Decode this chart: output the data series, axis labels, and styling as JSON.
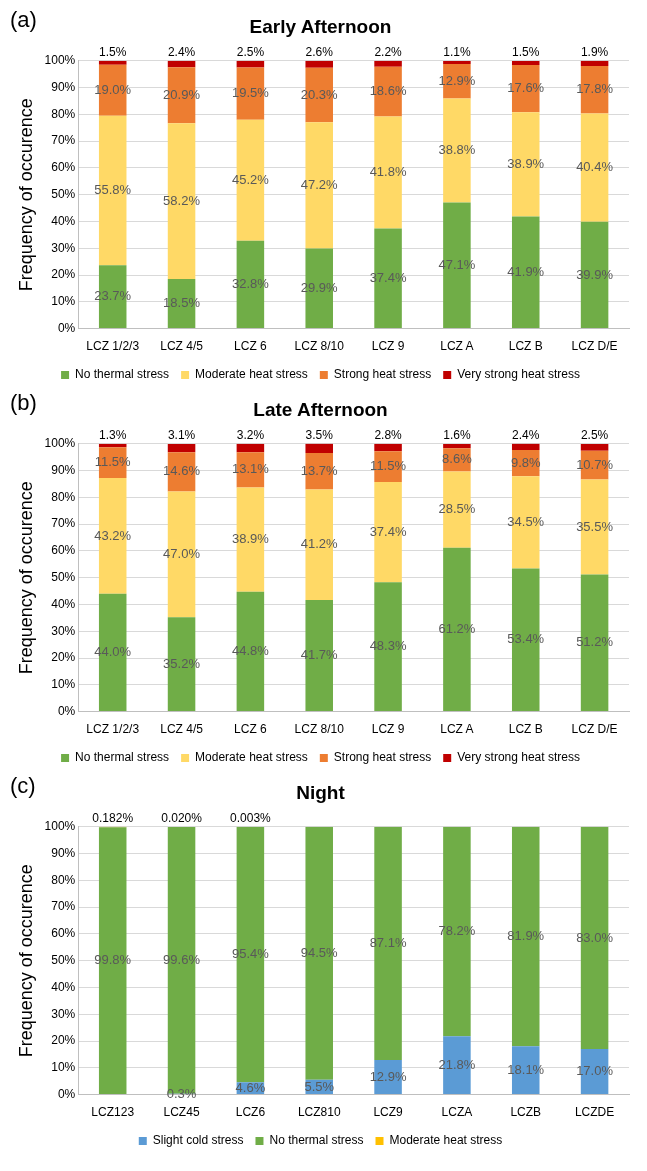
{
  "chart_data": [
    {
      "type": "bar",
      "stacked": true,
      "title": "Early Afternoon",
      "ylabel": "Frequency of occurence",
      "annotations": [
        "(a)"
      ],
      "categories": [
        "LCZ 1/2/3",
        "LCZ 4/5",
        "LCZ 6",
        "LCZ 8/10",
        "LCZ 9",
        "LCZ A",
        "LCZ B",
        "LCZ D/E"
      ],
      "ylim": [
        0,
        100
      ],
      "yticks": [
        {
          "value": 0,
          "label": "0%"
        },
        {
          "value": 10,
          "label": "10%"
        },
        {
          "value": 20,
          "label": "20%"
        },
        {
          "value": 30,
          "label": "30%"
        },
        {
          "value": 40,
          "label": "40%"
        },
        {
          "value": 50,
          "label": "50%"
        },
        {
          "value": 60,
          "label": "60%"
        },
        {
          "value": 70,
          "label": "70%"
        },
        {
          "value": 80,
          "label": "80%"
        },
        {
          "value": 90,
          "label": "90%"
        },
        {
          "value": 100,
          "label": "100%"
        }
      ],
      "grid": "y",
      "legend": "bottom",
      "series": [
        {
          "name": "No thermal stress",
          "color": "#70ad47",
          "values": [
            23.7,
            18.5,
            32.8,
            29.9,
            37.4,
            47.1,
            41.9,
            39.9
          ],
          "value_labels": [
            "23.7%",
            "18.5%",
            "32.8%",
            "29.9%",
            "37.4%",
            "47.1%",
            "41.9%",
            "39.9%"
          ]
        },
        {
          "name": "Moderate heat stress",
          "color": "#ffd966",
          "values": [
            55.8,
            58.2,
            45.2,
            47.2,
            41.8,
            38.8,
            38.9,
            40.4
          ],
          "value_labels": [
            "55.8%",
            "58.2%",
            "45.2%",
            "47.2%",
            "41.8%",
            "38.8%",
            "38.9%",
            "40.4%"
          ]
        },
        {
          "name": "Strong heat stress",
          "color": "#ed7d31",
          "values": [
            19.0,
            20.9,
            19.5,
            20.3,
            18.6,
            12.9,
            17.6,
            17.8
          ],
          "value_labels": [
            "19.0%",
            "20.9%",
            "19.5%",
            "20.3%",
            "18.6%",
            "12.9%",
            "17.6%",
            "17.8%"
          ]
        },
        {
          "name": "Very strong heat stress",
          "color": "#c00000",
          "values": [
            1.5,
            2.4,
            2.5,
            2.6,
            2.2,
            1.1,
            1.5,
            1.9
          ],
          "value_labels": [
            "1.5%",
            "2.4%",
            "2.5%",
            "2.6%",
            "2.2%",
            "1.1%",
            "1.5%",
            "1.9%"
          ]
        }
      ]
    },
    {
      "type": "bar",
      "stacked": true,
      "title": "Late Afternoon",
      "ylabel": "Frequency of occurence",
      "annotations": [
        "(b)"
      ],
      "categories": [
        "LCZ 1/2/3",
        "LCZ 4/5",
        "LCZ 6",
        "LCZ 8/10",
        "LCZ 9",
        "LCZ A",
        "LCZ B",
        "LCZ D/E"
      ],
      "ylim": [
        0,
        100
      ],
      "yticks": [
        {
          "value": 0,
          "label": "0%"
        },
        {
          "value": 10,
          "label": "10%"
        },
        {
          "value": 20,
          "label": "20%"
        },
        {
          "value": 30,
          "label": "30%"
        },
        {
          "value": 40,
          "label": "40%"
        },
        {
          "value": 50,
          "label": "50%"
        },
        {
          "value": 60,
          "label": "60%"
        },
        {
          "value": 70,
          "label": "70%"
        },
        {
          "value": 80,
          "label": "80%"
        },
        {
          "value": 90,
          "label": "90%"
        },
        {
          "value": 100,
          "label": "100%"
        }
      ],
      "grid": "y",
      "legend": "bottom",
      "series": [
        {
          "name": "No thermal stress",
          "color": "#70ad47",
          "values": [
            44.0,
            35.2,
            44.8,
            41.7,
            48.3,
            61.2,
            53.4,
            51.2
          ],
          "value_labels": [
            "44.0%",
            "35.2%",
            "44.8%",
            "41.7%",
            "48.3%",
            "61.2%",
            "53.4%",
            "51.2%"
          ]
        },
        {
          "name": "Moderate heat stress",
          "color": "#ffd966",
          "values": [
            43.2,
            47.0,
            38.9,
            41.2,
            37.4,
            28.5,
            34.5,
            35.5
          ],
          "value_labels": [
            "43.2%",
            "47.0%",
            "38.9%",
            "41.2%",
            "37.4%",
            "28.5%",
            "34.5%",
            "35.5%"
          ]
        },
        {
          "name": "Strong heat stress",
          "color": "#ed7d31",
          "values": [
            11.5,
            14.6,
            13.1,
            13.7,
            11.5,
            8.6,
            9.8,
            10.7
          ],
          "value_labels": [
            "11.5%",
            "14.6%",
            "13.1%",
            "13.7%",
            "11.5%",
            "8.6%",
            "9.8%",
            "10.7%"
          ]
        },
        {
          "name": "Very strong heat stress",
          "color": "#c00000",
          "values": [
            1.3,
            3.1,
            3.2,
            3.5,
            2.8,
            1.6,
            2.4,
            2.5
          ],
          "value_labels": [
            "1.3%",
            "3.1%",
            "3.2%",
            "3.5%",
            "2.8%",
            "1.6%",
            "2.4%",
            "2.5%"
          ]
        }
      ]
    },
    {
      "type": "bar",
      "stacked": true,
      "title": "Night",
      "ylabel": "Frequency of occurence",
      "annotations": [
        "(c)"
      ],
      "categories": [
        "LCZ123",
        "LCZ45",
        "LCZ6",
        "LCZ810",
        "LCZ9",
        "LCZA",
        "LCZB",
        "LCZDE"
      ],
      "ylim": [
        0,
        100
      ],
      "yticks": [
        {
          "value": 0,
          "label": "0%"
        },
        {
          "value": 10,
          "label": "10%"
        },
        {
          "value": 20,
          "label": "20%"
        },
        {
          "value": 30,
          "label": "30%"
        },
        {
          "value": 40,
          "label": "40%"
        },
        {
          "value": 50,
          "label": "50%"
        },
        {
          "value": 60,
          "label": "60%"
        },
        {
          "value": 70,
          "label": "70%"
        },
        {
          "value": 80,
          "label": "80%"
        },
        {
          "value": 90,
          "label": "90%"
        },
        {
          "value": 100,
          "label": "100%"
        }
      ],
      "grid": "y",
      "legend": "bottom",
      "series": [
        {
          "name": "Slight cold stress",
          "color": "#5b9bd5",
          "values": [
            null,
            0.3,
            4.6,
            5.5,
            12.9,
            21.8,
            18.1,
            17.0
          ],
          "value_labels": [
            null,
            "0.3%",
            "4.6%",
            "5.5%",
            "12.9%",
            "21.8%",
            "18.1%",
            "17.0%"
          ]
        },
        {
          "name": "No thermal stress",
          "color": "#70ad47",
          "values": [
            99.8,
            99.6,
            95.4,
            94.5,
            87.1,
            78.2,
            81.9,
            83.0
          ],
          "value_labels": [
            "99.8%",
            "99.6%",
            "95.4%",
            "94.5%",
            "87.1%",
            "78.2%",
            "81.9%",
            "83.0%"
          ]
        },
        {
          "name": "Moderate heat stress",
          "color": "#ffc000",
          "values": [
            0.182,
            0.02,
            0.003,
            null,
            null,
            null,
            null,
            null
          ],
          "value_labels": [
            "0.182%",
            "0.020%",
            "0.003%",
            null,
            null,
            null,
            null,
            null
          ]
        }
      ]
    }
  ]
}
